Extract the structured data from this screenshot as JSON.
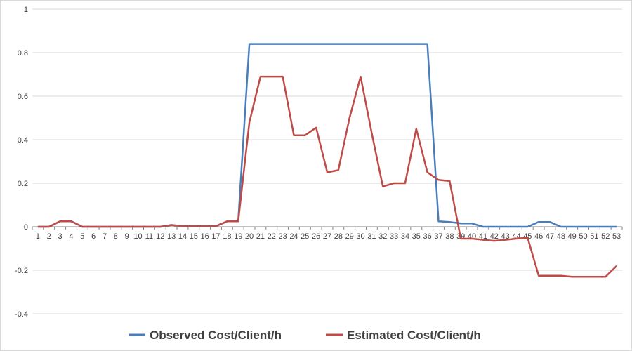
{
  "chart_data": {
    "type": "line",
    "title": "",
    "xlabel": "",
    "ylabel": "",
    "categories": [
      "1",
      "2",
      "3",
      "4",
      "5",
      "6",
      "7",
      "8",
      "9",
      "10",
      "11",
      "12",
      "13",
      "14",
      "15",
      "16",
      "17",
      "18",
      "19",
      "20",
      "21",
      "22",
      "23",
      "24",
      "25",
      "26",
      "27",
      "28",
      "29",
      "30",
      "31",
      "32",
      "33",
      "34",
      "35",
      "36",
      "37",
      "38",
      "39",
      "40",
      "41",
      "42",
      "43",
      "44",
      "45",
      "46",
      "47",
      "48",
      "49",
      "50",
      "51",
      "52",
      "53"
    ],
    "ylim": [
      -0.4,
      1
    ],
    "yticks": [
      -0.4,
      -0.2,
      0,
      0.2,
      0.4,
      0.6,
      0.8,
      1
    ],
    "ytick_labels": [
      "-0.4",
      "-0.2",
      "0",
      "0.2",
      "0.4",
      "0.6",
      "0.8",
      "1"
    ],
    "grid": "horizontal",
    "legend_position": "bottom",
    "series": [
      {
        "name": "Observed Cost/Client/h",
        "color": "#4a7ebb",
        "values": [
          0,
          0,
          0.025,
          0.025,
          0,
          0,
          0,
          0,
          0,
          0,
          0,
          0,
          0.008,
          0.003,
          0.003,
          0.003,
          0.003,
          0.025,
          0.025,
          0.84,
          0.84,
          0.84,
          0.84,
          0.84,
          0.84,
          0.84,
          0.84,
          0.84,
          0.84,
          0.84,
          0.84,
          0.84,
          0.84,
          0.84,
          0.84,
          0.84,
          0.025,
          0.022,
          0.015,
          0.015,
          0,
          0,
          0,
          0,
          0,
          0.022,
          0.022,
          0,
          0,
          0,
          0,
          0,
          0
        ]
      },
      {
        "name": "Estimated Cost/Client/h",
        "color": "#be4b48",
        "values": [
          0,
          0,
          0.025,
          0.025,
          0,
          0,
          0,
          0,
          0,
          0,
          0,
          0,
          0.008,
          0.003,
          0.003,
          0.003,
          0.003,
          0.025,
          0.025,
          0.48,
          0.69,
          0.69,
          0.69,
          0.42,
          0.42,
          0.455,
          0.25,
          0.26,
          0.5,
          0.69,
          0.43,
          0.185,
          0.2,
          0.2,
          0.45,
          0.25,
          0.215,
          0.21,
          -0.055,
          -0.055,
          -0.06,
          -0.065,
          -0.06,
          -0.055,
          -0.05,
          -0.225,
          -0.225,
          -0.225,
          -0.23,
          -0.23,
          -0.23,
          -0.23,
          -0.18
        ]
      }
    ]
  }
}
